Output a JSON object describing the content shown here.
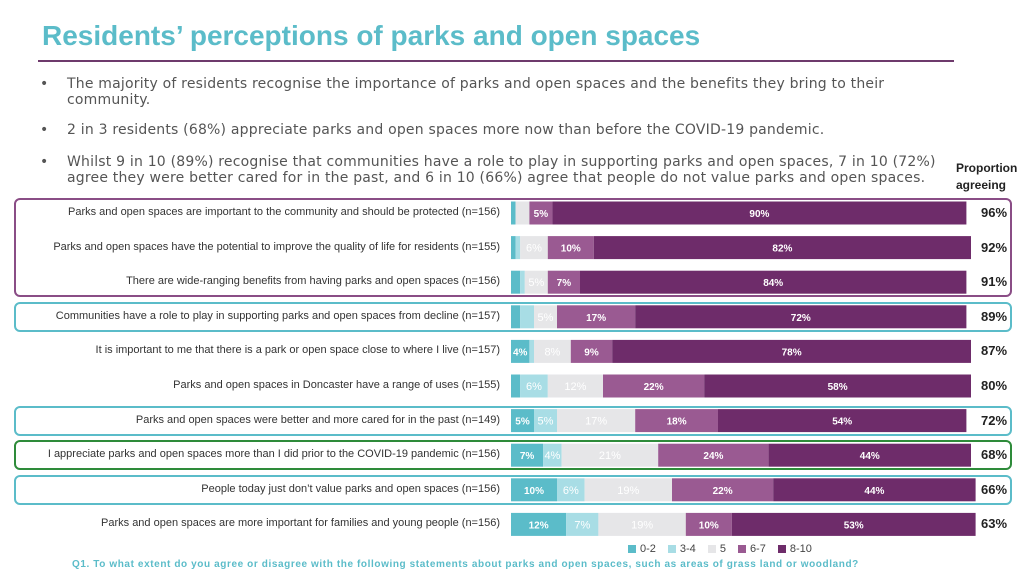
{
  "title": "Residents’ perceptions of parks and open spaces",
  "bullets": [
    "The majority of residents recognise the importance of parks and open spaces and the benefits they bring to their community.",
    "2 in 3 residents (68%) appreciate parks and open spaces more now than before the COVID-19 pandemic.",
    "Whilst 9 in 10 (89%) recognise that communities have a role to play in supporting parks and open spaces, 7 in 10 (72%) agree they were better cared for in the past, and 6 in 10 (66%) agree that people do not value parks and open spaces."
  ],
  "proportion_header": "Proportion agreeing",
  "footnote": "Q1. To what extent do you agree or disagree with the following statements about parks and open spaces, such as areas of grass land or woodland?",
  "colors": {
    "title": "#5bbcc9",
    "box_purple": "#8a4d86",
    "box_teal": "#5bbcc9",
    "box_green": "#2e8b3a"
  },
  "chart_data": {
    "type": "bar",
    "orientation": "horizontal",
    "stacked": true,
    "xlim": [
      0,
      100
    ],
    "categories": [
      "Parks and open spaces are important to the community and should be protected (n=156)",
      "Parks and open spaces have the potential to improve the quality of life for residents (n=155)",
      "There are wide-ranging benefits from having parks and open spaces (n=156)",
      "Communities have a role to play in supporting parks and open spaces from decline (n=157)",
      "It is important to me that there is a park or open space close to where I live (n=157)",
      "Parks and open spaces in Doncaster have a range of uses (n=155)",
      "Parks and open spaces were better and more cared for in the past (n=149)",
      "I appreciate parks and open spaces more than I did prior to the COVID-19 pandemic (n=156)",
      "People today just don’t value parks and open spaces (n=156)",
      "Parks and open spaces are more important for families and young people (n=156)"
    ],
    "series": [
      {
        "name": "0-2",
        "color": "#5bbcc9",
        "label_color": "#ffffff",
        "values": [
          1,
          1,
          2,
          2,
          4,
          2,
          5,
          7,
          10,
          12
        ]
      },
      {
        "name": "3-4",
        "color": "#a8dde5",
        "label_color": "#ffffff",
        "values": [
          0,
          1,
          1,
          3,
          1,
          6,
          5,
          4,
          6,
          7
        ]
      },
      {
        "name": "5",
        "color": "#e6e6e8",
        "label_color": "#ffffff",
        "values": [
          3,
          6,
          5,
          5,
          8,
          12,
          17,
          21,
          19,
          19
        ]
      },
      {
        "name": "6-7",
        "color": "#9a5a92",
        "label_color": "#ffffff",
        "values": [
          5,
          10,
          7,
          17,
          9,
          22,
          18,
          24,
          22,
          10
        ]
      },
      {
        "name": "8-10",
        "color": "#6e2c6a",
        "label_color": "#ffffff",
        "values": [
          90,
          82,
          84,
          72,
          78,
          58,
          54,
          44,
          44,
          53
        ]
      }
    ],
    "segment_labels": [
      [
        "",
        "",
        "",
        "5%",
        "90%"
      ],
      [
        "",
        "",
        "6%",
        "10%",
        "82%"
      ],
      [
        "",
        "",
        "5%",
        "7%",
        "84%"
      ],
      [
        "",
        "",
        "5%",
        "17%",
        "72%"
      ],
      [
        "4%",
        "",
        "8%",
        "9%",
        "78%"
      ],
      [
        "",
        "6%",
        "12%",
        "22%",
        "58%"
      ],
      [
        "5%",
        "5%",
        "17%",
        "18%",
        "54%"
      ],
      [
        "7%",
        "4%",
        "21%",
        "24%",
        "44%"
      ],
      [
        "10%",
        "6%",
        "19%",
        "22%",
        "44%"
      ],
      [
        "12%",
        "7%",
        "19%",
        "10%",
        "53%"
      ]
    ],
    "proportion_agreeing": [
      "96%",
      "92%",
      "91%",
      "89%",
      "87%",
      "80%",
      "72%",
      "68%",
      "66%",
      "63%"
    ],
    "legend": [
      "0-2",
      "3-4",
      "5",
      "6-7",
      "8-10"
    ],
    "legend_position": "bottom-right",
    "highlight_groups": [
      {
        "rows": [
          0,
          1,
          2
        ],
        "color": "#8a4d86"
      },
      {
        "rows": [
          3
        ],
        "color": "#5bbcc9"
      },
      {
        "rows": [
          6
        ],
        "color": "#5bbcc9"
      },
      {
        "rows": [
          7
        ],
        "color": "#2e8b3a"
      },
      {
        "rows": [
          8
        ],
        "color": "#5bbcc9"
      }
    ]
  }
}
